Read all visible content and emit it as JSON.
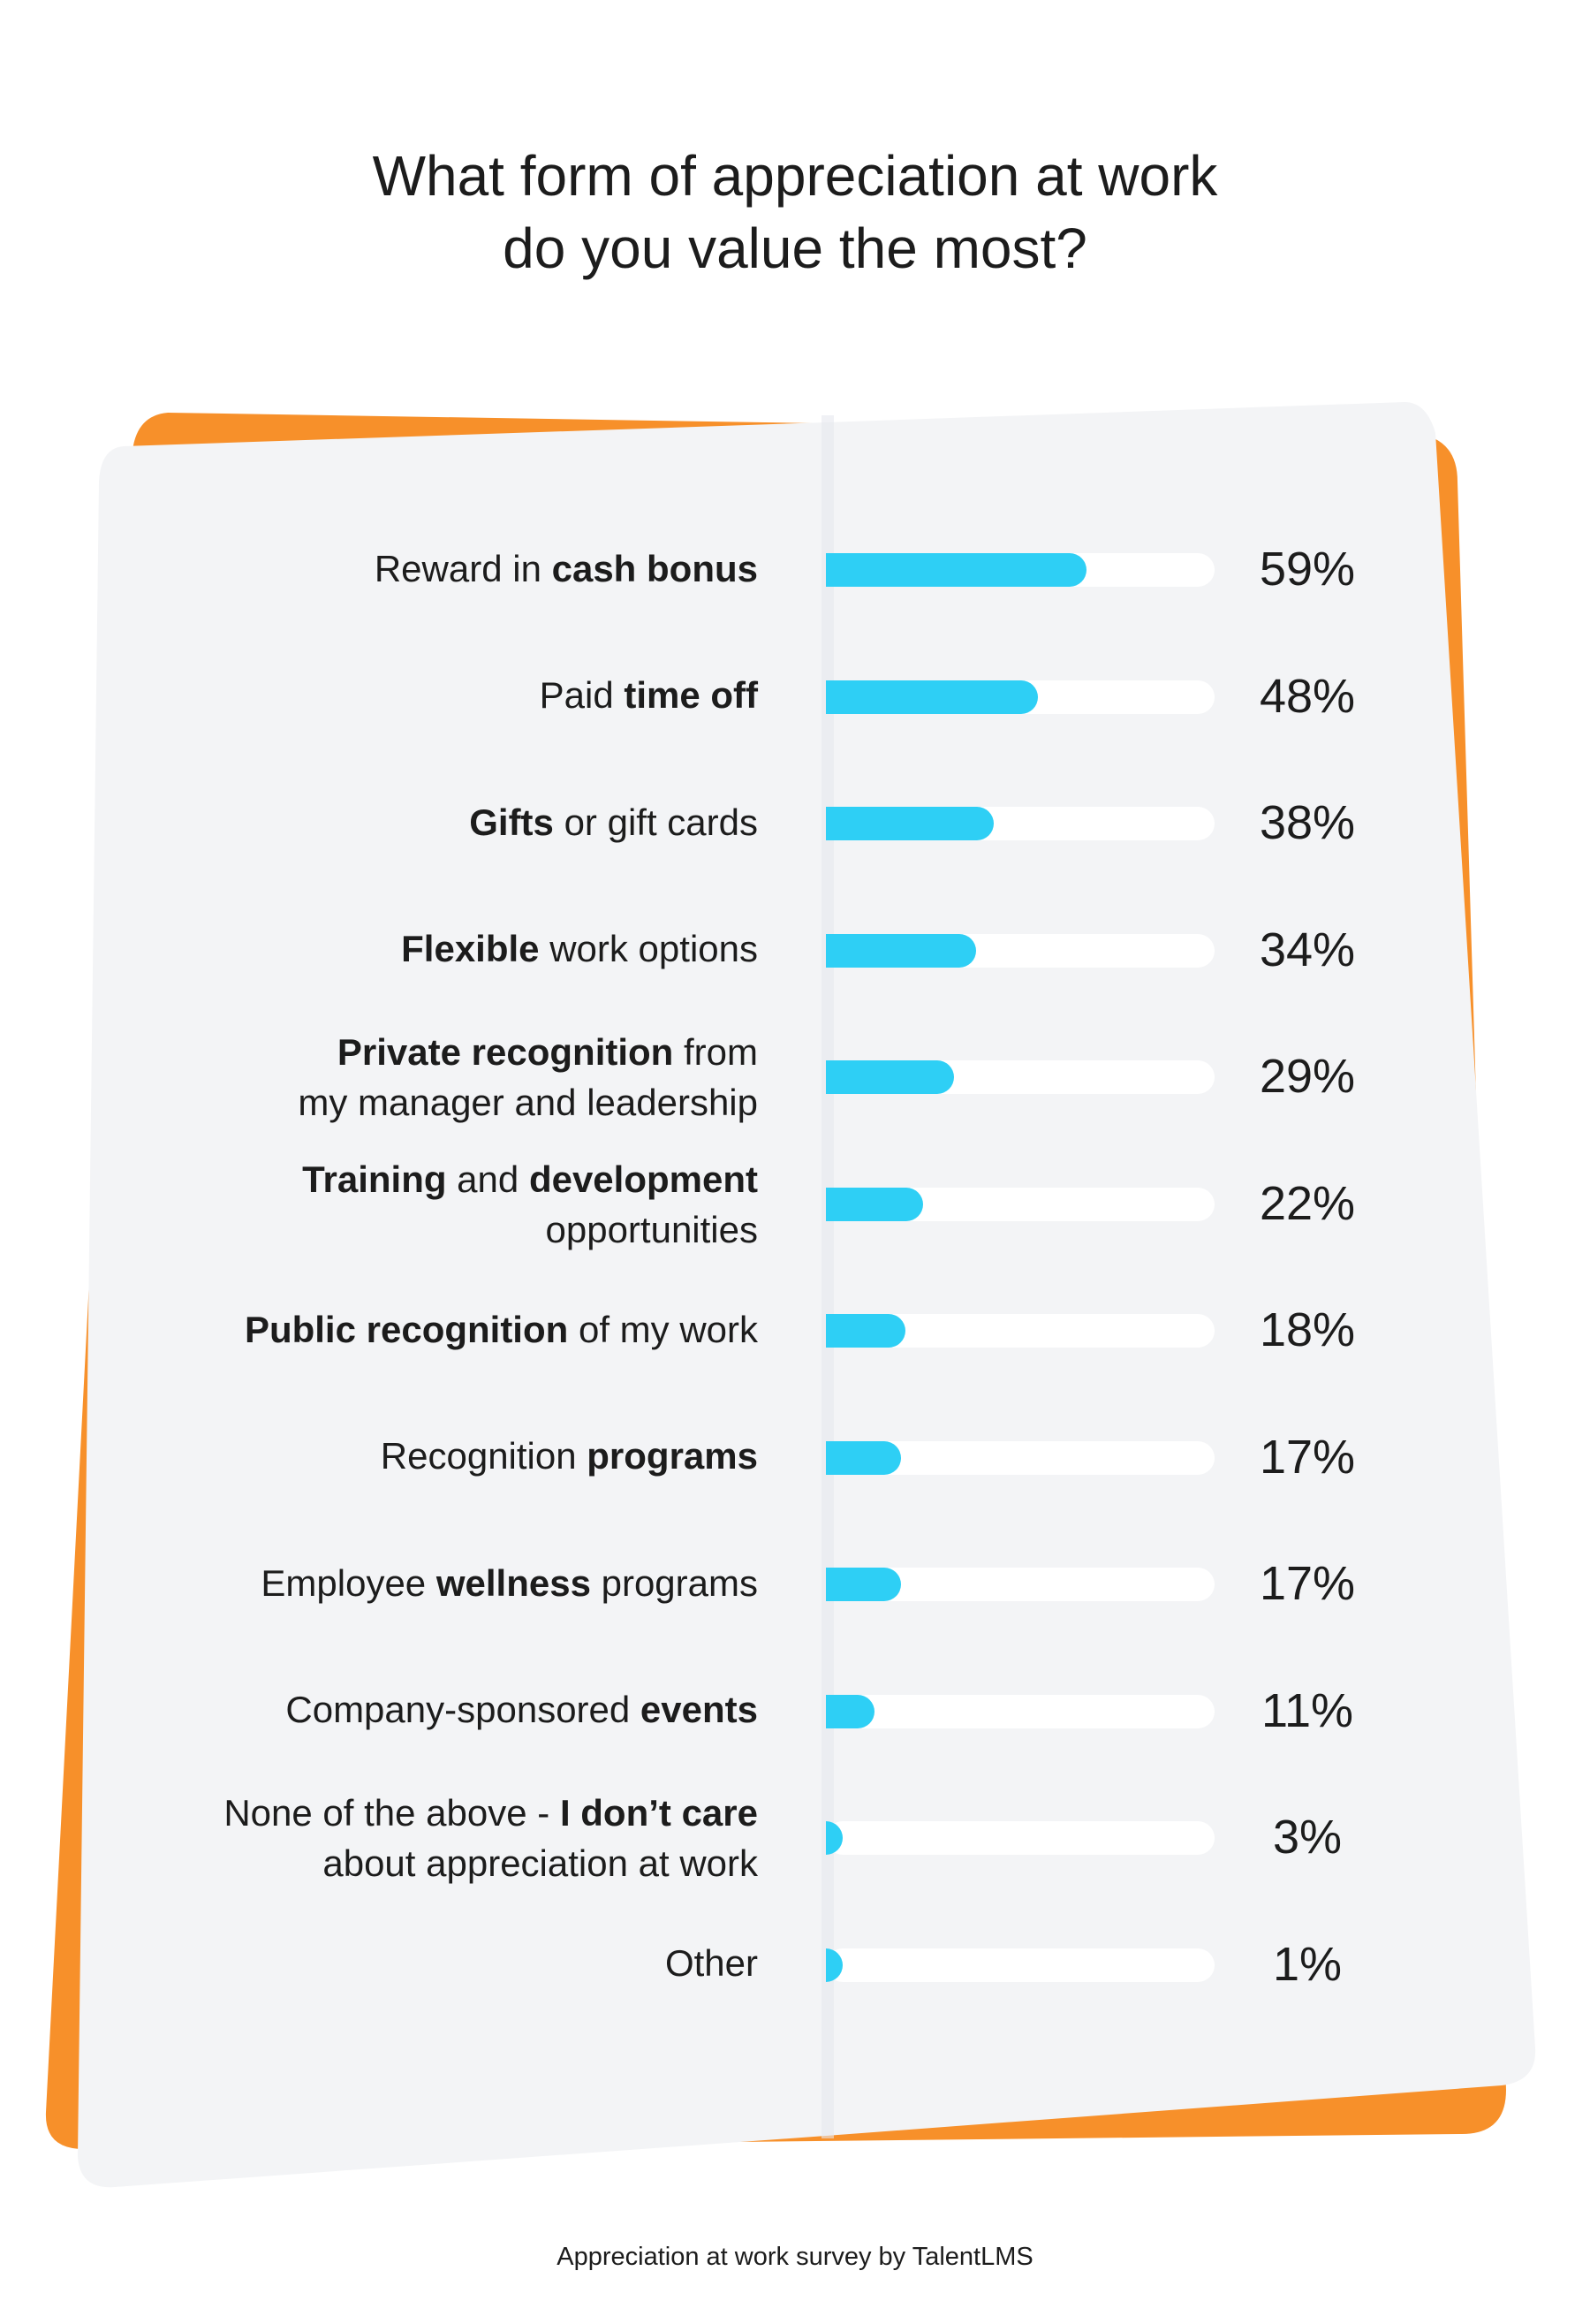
{
  "chart_data": {
    "type": "bar",
    "orientation": "horizontal",
    "title": [
      "What form of appreciation at work",
      "do you value the most?"
    ],
    "categories": [
      [
        [
          {
            "text": "Reward in "
          },
          {
            "text": "cash bonus",
            "bold": true
          }
        ]
      ],
      [
        [
          {
            "text": "Paid "
          },
          {
            "text": "time off",
            "bold": true
          }
        ]
      ],
      [
        [
          {
            "text": "Gifts",
            "bold": true
          },
          {
            "text": " or gift cards"
          }
        ]
      ],
      [
        [
          {
            "text": "Flexible",
            "bold": true
          },
          {
            "text": " work options"
          }
        ]
      ],
      [
        [
          {
            "text": "Private recognition",
            "bold": true
          },
          {
            "text": " from"
          }
        ],
        [
          {
            "text": "my manager and leadership"
          }
        ]
      ],
      [
        [
          {
            "text": "Training",
            "bold": true
          },
          {
            "text": " and "
          },
          {
            "text": "development",
            "bold": true
          }
        ],
        [
          {
            "text": "opportunities"
          }
        ]
      ],
      [
        [
          {
            "text": "Public recognition",
            "bold": true
          },
          {
            "text": " of my work"
          }
        ]
      ],
      [
        [
          {
            "text": "Recognition "
          },
          {
            "text": "programs",
            "bold": true
          }
        ]
      ],
      [
        [
          {
            "text": "Employee "
          },
          {
            "text": "wellness",
            "bold": true
          },
          {
            "text": " programs"
          }
        ]
      ],
      [
        [
          {
            "text": "Company-sponsored "
          },
          {
            "text": "events",
            "bold": true
          }
        ]
      ],
      [
        [
          {
            "text": "None of the above - "
          },
          {
            "text": "I don’t care",
            "bold": true
          }
        ],
        [
          {
            "text": "about appreciation at work"
          }
        ]
      ],
      [
        [
          {
            "text": "Other"
          }
        ]
      ]
    ],
    "values": [
      59,
      48,
      38,
      34,
      29,
      22,
      18,
      17,
      17,
      11,
      3,
      1
    ],
    "value_labels": [
      "59%",
      "48%",
      "38%",
      "34%",
      "29%",
      "22%",
      "18%",
      "17%",
      "17%",
      "11%",
      "3%",
      "1%"
    ],
    "xlim": [
      0,
      88
    ],
    "color": "#2ecff5",
    "track_color": "#ffffff",
    "footer": "Appreciation at work survey by TalentLMS"
  }
}
